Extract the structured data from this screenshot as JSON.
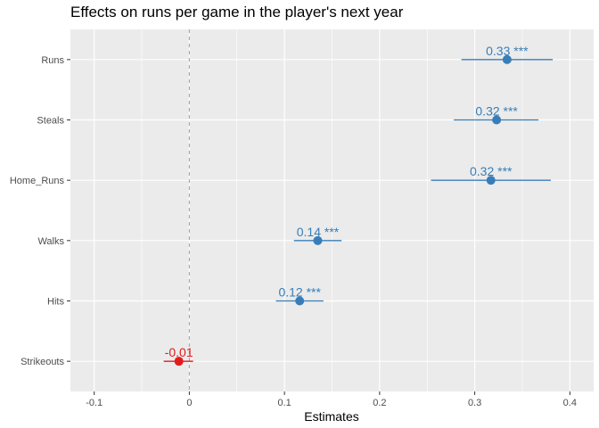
{
  "chart_data": {
    "type": "scatter",
    "title": "Effects on runs per game in the player's next year",
    "xlabel": "Estimates",
    "ylabel": "",
    "xlim": [
      -0.125,
      0.425
    ],
    "x_ticks": [
      -0.1,
      0,
      0.1,
      0.2,
      0.3,
      0.4
    ],
    "x_tick_labels": [
      "-0.1",
      "0",
      "0.1",
      "0.2",
      "0.3",
      "0.4"
    ],
    "reference_line": 0,
    "grid": true,
    "legend": "none",
    "colors": {
      "positive": "#377eb8",
      "negative": "#e41a1c",
      "panel": "#ebebeb",
      "grid": "#ffffff",
      "reference": "#a6a6a6"
    },
    "categories": [
      "Runs",
      "Steals",
      "Home_Runs",
      "Walks",
      "Hits",
      "Strikeouts"
    ],
    "estimates": [
      0.334,
      0.323,
      0.317,
      0.135,
      0.116,
      -0.011
    ],
    "ci_low": [
      0.286,
      0.278,
      0.254,
      0.11,
      0.091,
      -0.027
    ],
    "ci_high": [
      0.382,
      0.367,
      0.38,
      0.16,
      0.141,
      0.004
    ],
    "labels": [
      "0.33 ***",
      "0.32 ***",
      "0.32 ***",
      "0.14 ***",
      "0.12 ***",
      "-0.01"
    ]
  }
}
